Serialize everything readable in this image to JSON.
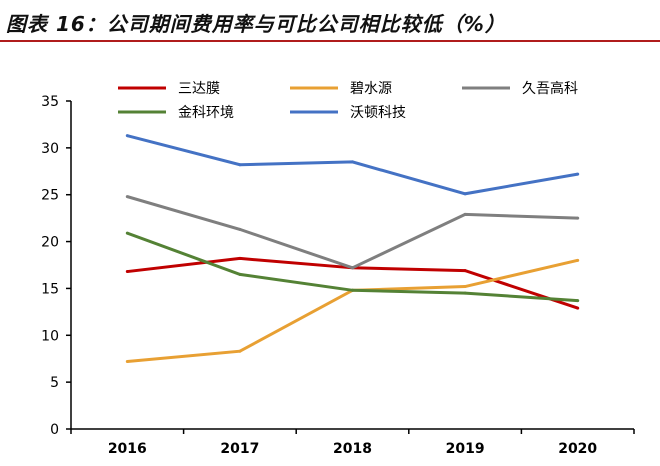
{
  "title": "图表 16：公司期间费用率与可比公司相比较低（%）",
  "chart_data": {
    "type": "line",
    "title": "图表 16：公司期间费用率与可比公司相比较低（%）",
    "categories": [
      "2016",
      "2017",
      "2018",
      "2019",
      "2020"
    ],
    "ylim": [
      0,
      35
    ],
    "yticks": [
      0,
      5,
      10,
      15,
      20,
      25,
      30,
      35
    ],
    "grid": false,
    "legend": "top",
    "series": [
      {
        "name": "三达膜",
        "color": "#c00000",
        "values": [
          16.8,
          18.2,
          17.2,
          16.9,
          12.9
        ]
      },
      {
        "name": "碧水源",
        "color": "#e8a033",
        "values": [
          7.2,
          8.3,
          14.8,
          15.2,
          18.0
        ]
      },
      {
        "name": "久吾高科",
        "color": "#7f7f7f",
        "values": [
          24.8,
          21.3,
          17.2,
          22.9,
          22.5
        ]
      },
      {
        "name": "金科环境",
        "color": "#548235",
        "values": [
          20.9,
          16.5,
          14.8,
          14.5,
          13.7
        ]
      },
      {
        "name": "沃顿科技",
        "color": "#4472c4",
        "values": [
          31.3,
          28.2,
          28.5,
          25.1,
          27.2
        ]
      }
    ]
  }
}
